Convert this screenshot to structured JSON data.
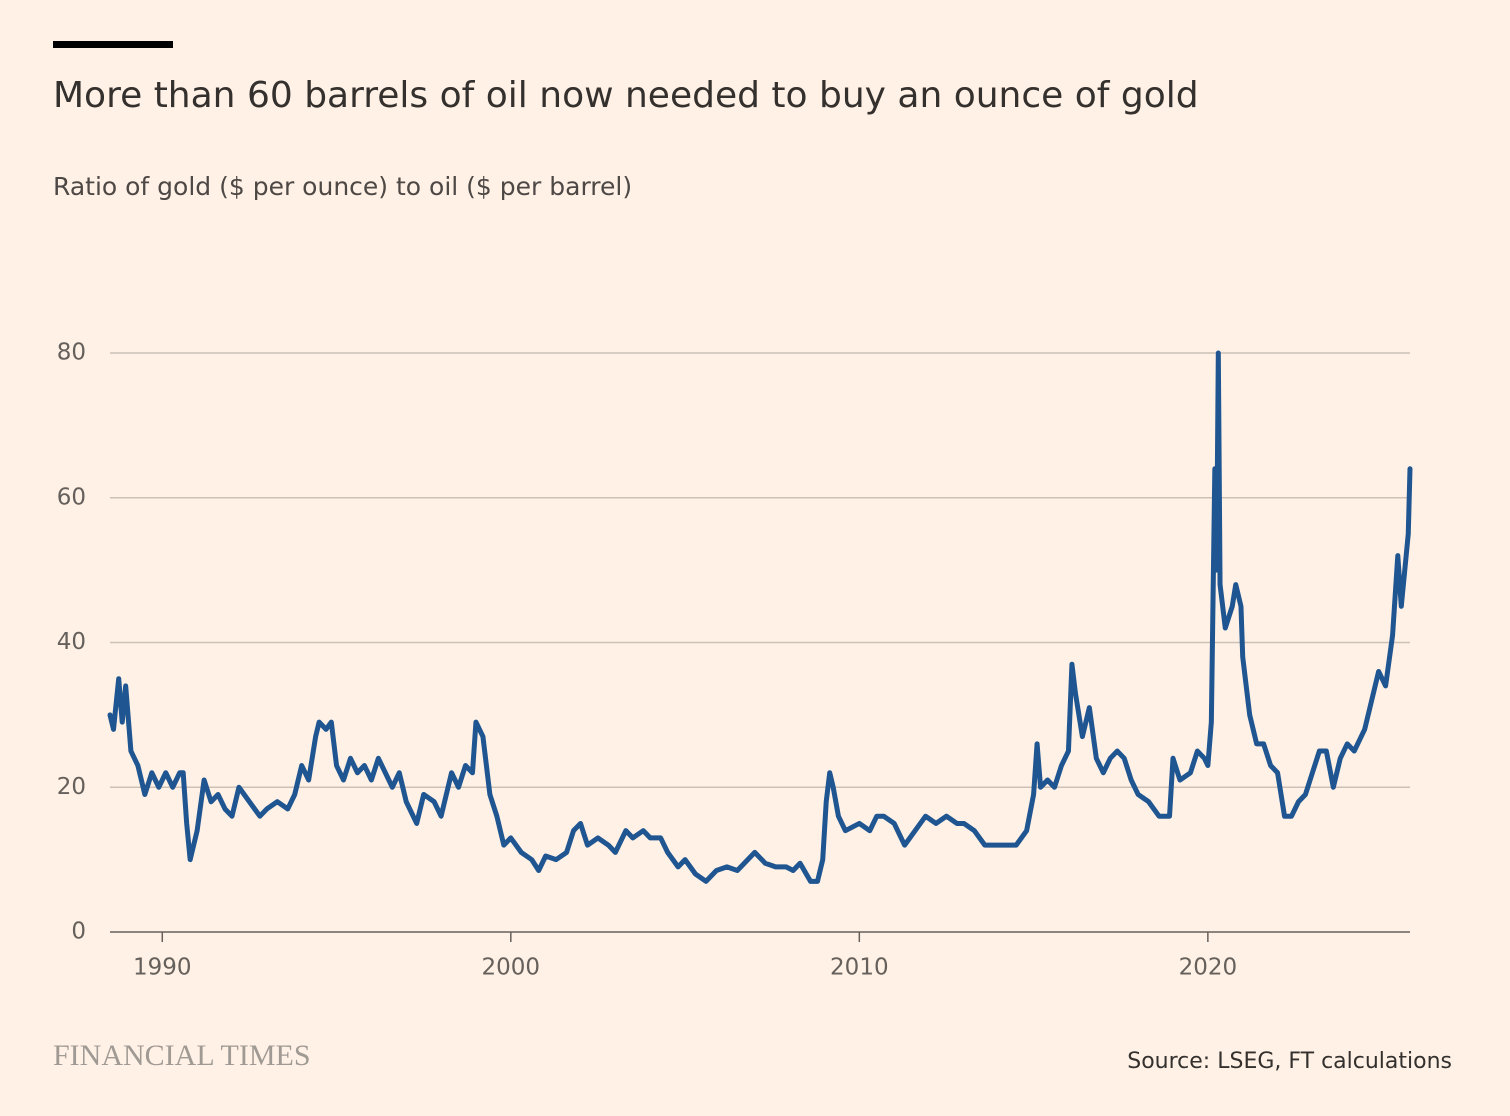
{
  "chart_data": {
    "type": "line",
    "title": "More than 60 barrels of oil now needed to buy an ounce of gold",
    "subtitle": "Ratio of gold ($ per ounce) to oil ($ per barrel)",
    "source": "Source: LSEG, FT calculations",
    "brand": "FINANCIAL TIMES",
    "color": "#1f5591",
    "grid": true,
    "xlim": [
      1988.5,
      2025.8
    ],
    "xticks": [
      1990,
      2000,
      2010,
      2020
    ],
    "ylim": [
      0,
      80
    ],
    "yticks": [
      0,
      20,
      40,
      60,
      80
    ],
    "x": [
      1988.5,
      1988.6,
      1988.75,
      1988.85,
      1988.95,
      1989.1,
      1989.3,
      1989.5,
      1989.7,
      1989.9,
      1990.1,
      1990.3,
      1990.5,
      1990.6,
      1990.7,
      1990.8,
      1991.0,
      1991.2,
      1991.4,
      1991.6,
      1991.8,
      1992.0,
      1992.2,
      1992.5,
      1992.8,
      1993.0,
      1993.3,
      1993.6,
      1993.8,
      1994.0,
      1994.2,
      1994.4,
      1994.5,
      1994.7,
      1994.85,
      1995.0,
      1995.2,
      1995.4,
      1995.6,
      1995.8,
      1996.0,
      1996.2,
      1996.4,
      1996.6,
      1996.8,
      1997.0,
      1997.3,
      1997.5,
      1997.8,
      1998.0,
      1998.3,
      1998.5,
      1998.7,
      1998.9,
      1999.0,
      1999.2,
      1999.4,
      1999.6,
      1999.8,
      2000.0,
      2000.3,
      2000.6,
      2000.8,
      2001.0,
      2001.3,
      2001.6,
      2001.8,
      2002.0,
      2002.2,
      2002.5,
      2002.8,
      2003.0,
      2003.3,
      2003.5,
      2003.8,
      2004.0,
      2004.3,
      2004.5,
      2004.8,
      2005.0,
      2005.3,
      2005.6,
      2005.9,
      2006.2,
      2006.5,
      2006.8,
      2007.0,
      2007.3,
      2007.6,
      2007.9,
      2008.1,
      2008.3,
      2008.6,
      2008.8,
      2008.95,
      2009.05,
      2009.15,
      2009.25,
      2009.4,
      2009.6,
      2009.8,
      2010.0,
      2010.3,
      2010.5,
      2010.7,
      2011.0,
      2011.3,
      2011.6,
      2011.9,
      2012.2,
      2012.5,
      2012.8,
      2013.0,
      2013.3,
      2013.6,
      2013.9,
      2014.2,
      2014.5,
      2014.8,
      2015.0,
      2015.1,
      2015.2,
      2015.4,
      2015.6,
      2015.8,
      2016.0,
      2016.1,
      2016.2,
      2016.4,
      2016.6,
      2016.8,
      2017.0,
      2017.2,
      2017.4,
      2017.6,
      2017.8,
      2018.0,
      2018.3,
      2018.6,
      2018.9,
      2019.0,
      2019.2,
      2019.5,
      2019.7,
      2019.9,
      2020.0,
      2020.1,
      2020.2,
      2020.25,
      2020.3,
      2020.35,
      2020.5,
      2020.7,
      2020.8,
      2020.95,
      2021.0,
      2021.2,
      2021.4,
      2021.6,
      2021.8,
      2022.0,
      2022.2,
      2022.4,
      2022.6,
      2022.8,
      2023.0,
      2023.2,
      2023.4,
      2023.6,
      2023.8,
      2024.0,
      2024.2,
      2024.5,
      2024.7,
      2024.9,
      2025.1,
      2025.3,
      2025.45,
      2025.55,
      2025.65,
      2025.75,
      2025.8
    ],
    "values": [
      30,
      28,
      35,
      29,
      34,
      25,
      23,
      19,
      22,
      20,
      22,
      20,
      22,
      22,
      15,
      10,
      14,
      21,
      18,
      19,
      17,
      16,
      20,
      18,
      16,
      17,
      18,
      17,
      19,
      23,
      21,
      27,
      29,
      28,
      29,
      23,
      21,
      24,
      22,
      23,
      21,
      24,
      22,
      20,
      22,
      18,
      15,
      19,
      18,
      16,
      22,
      20,
      23,
      22,
      29,
      27,
      19,
      16,
      12,
      13,
      11,
      10,
      8.5,
      10.5,
      10,
      11,
      14,
      15,
      12,
      13,
      12,
      11,
      14,
      13,
      14,
      13,
      13,
      11,
      9,
      10,
      8,
      7,
      8.5,
      9,
      8.5,
      10,
      11,
      9.5,
      9,
      9,
      8.5,
      9.5,
      7,
      7,
      10,
      18,
      22,
      20,
      16,
      14,
      14.5,
      15,
      14,
      16,
      16,
      15,
      12,
      14,
      16,
      15,
      16,
      15,
      15,
      14,
      12,
      12,
      12,
      12,
      14,
      19,
      26,
      20,
      21,
      20,
      23,
      25,
      37,
      33,
      27,
      31,
      24,
      22,
      24,
      25,
      24,
      21,
      19,
      18,
      16,
      16,
      24,
      21,
      22,
      25,
      24,
      23,
      29,
      64,
      50,
      80,
      48,
      42,
      45,
      48,
      45,
      38,
      30,
      26,
      26,
      23,
      22,
      16,
      16,
      18,
      19,
      22,
      25,
      25,
      20,
      24,
      26,
      25,
      28,
      32,
      36,
      34,
      41,
      52,
      45,
      50,
      55,
      64
    ]
  }
}
